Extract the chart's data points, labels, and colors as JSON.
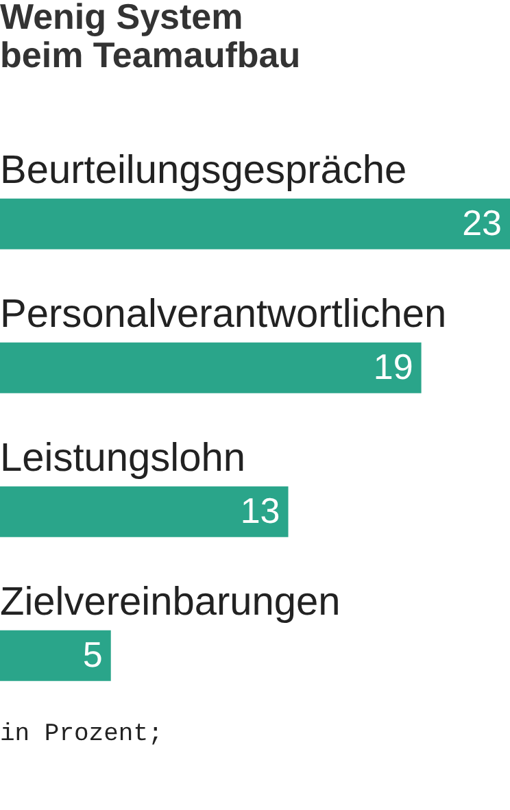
{
  "chart_data": {
    "type": "bar",
    "orientation": "horizontal",
    "title": "Wenig System\nbeim Teamaufbau",
    "categories": [
      "Beurteilungsgespräche",
      "Personalverantwortlichen",
      "Leistungslohn",
      "Zielvereinbarungen"
    ],
    "values": [
      23,
      19,
      13,
      5
    ],
    "color": "#2aa58a",
    "data_labels": true,
    "grid": false,
    "annotations": [
      "in Prozent;"
    ]
  }
}
